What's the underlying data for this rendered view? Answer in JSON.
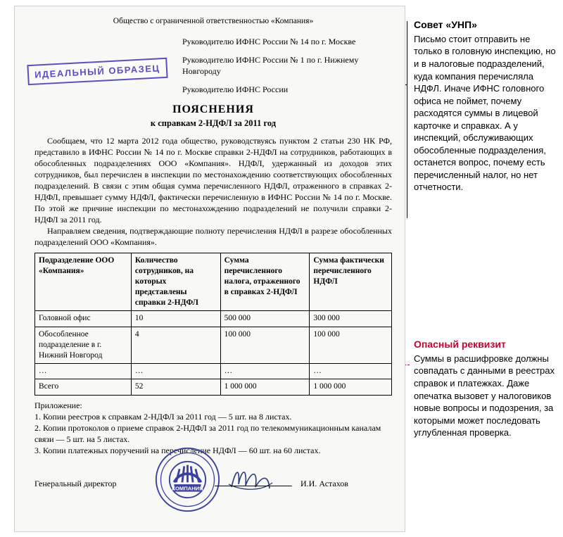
{
  "org_header": "Общество с ограниченной ответственностью «Компания»",
  "stamp": "ИДЕАЛЬНЫЙ ОБРАЗЕЦ",
  "addressees": [
    "Руководителю ИФНС России № 14 по г. Москве",
    "Руководителю ИФНС России № 1 по г. Нижнему Новгороду",
    "Руководителю ИФНС России"
  ],
  "doc_title": "ПОЯСНЕНИЯ",
  "doc_subtitle": "к справкам 2-НДФЛ за 2011 год",
  "body_p1": "Сообщаем, что 12 марта 2012 года общество, руководствуясь пунктом 2 статьи 230 НК РФ, представило в ИФНС России № 14 по г. Москве справки 2-НДФЛ на сотрудников, работающих в обособленных подразделениях ООО «Компания». НДФЛ, удержанный из доходов этих сотрудников, был перечислен в инспекции по местонахождению соответствующих обособленных подразделений. В связи с этим общая сумма перечисленного НДФЛ, отраженного в справках 2-НДФЛ, превышает сумму НДФЛ, фактически перечисленную в ИФНС России № 14 по г. Москве. По этой же причине инспекции по местонахождению подразделений не получили справки 2-НДФЛ за 2011 год.",
  "body_p2": "Направляем сведения, подтверждающие полноту перечисления НДФЛ в разрезе обособленных подразделений ООО «Компания».",
  "table": {
    "columns": [
      "Подразделение ООО «Компания»",
      "Количество сотрудников, на которых представлены справки 2-НДФЛ",
      "Сумма перечисленного налога, отраженного в справках 2-НДФЛ",
      "Сумма фактически перечисленного НДФЛ"
    ],
    "col_widths": [
      "27%",
      "25%",
      "25%",
      "23%"
    ],
    "rows": [
      [
        "Головной офис",
        "10",
        "500 000",
        "300 000"
      ],
      [
        "Обособленное подразделение в г. Нижний Новгород",
        "4",
        "100 000",
        "100 000"
      ],
      [
        "…",
        "…",
        "…",
        "…"
      ],
      [
        "Всего",
        "52",
        "1 000 000",
        "1 000 000"
      ]
    ]
  },
  "attachments_label": "Приложение:",
  "attachments": [
    "1. Копии реестров к справкам 2-НДФЛ за 2011 год — 5 шт. на 8 листах.",
    "2. Копии протоколов о приеме справок 2-НДФЛ за 2011 год по телекоммуникационным каналам связи — 5 шт. на 5 листах.",
    "3. Копии платежных поручений на перечисление НДФЛ — 60 шт. на 60 листах."
  ],
  "sig_role": "Генеральный директор",
  "sig_name": "И.И. Астахов",
  "seal_text": "КОМПАНИЯ",
  "callout1": {
    "title": "Совет «УНП»",
    "text": "Письмо стоит отправить не только в головную инспекцию, но и в налоговые подразделений, куда компания перечисляла НДФЛ. Иначе ИФНС головного офиса не поймет, почему расходятся суммы в лицевой карточке и справках. А у инспекций, обслуживающих обособленные подразделения, останется вопрос, почему есть перечисленный налог, но нет отчетности."
  },
  "callout2": {
    "title": "Опасный реквизит",
    "text": "Суммы в расшифровке должны совпадать с данными в реестрах справок и платежках. Даже опечатка вызовет у налоговиков новые вопросы и подозрения, за которыми может последовать углубленная проверка."
  },
  "colors": {
    "stamp": "#5a4fbf",
    "danger": "#c3002f",
    "page_bg": "#f8f8f6",
    "page_border": "#d0d0cc"
  }
}
